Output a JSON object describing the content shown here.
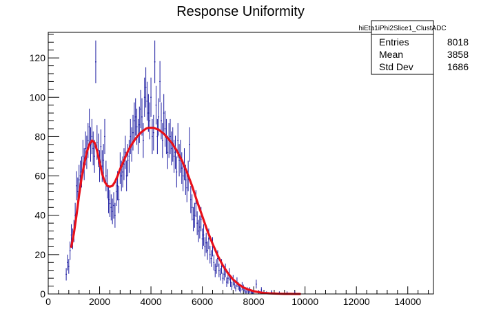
{
  "chart_data": {
    "type": "scatter",
    "title": "Response Uniformity",
    "xlabel": "",
    "ylabel": "",
    "xlim": [
      0,
      15000
    ],
    "ylim": [
      0,
      133
    ],
    "x_ticks": [
      0,
      2000,
      4000,
      6000,
      8000,
      10000,
      12000,
      14000
    ],
    "y_ticks": [
      0,
      20,
      40,
      60,
      80,
      100,
      120
    ],
    "grid": false,
    "colors": {
      "data": "#1a1aa0",
      "fit": "#e8101a",
      "axis": "#000000"
    },
    "stats_box": {
      "name": "hiEta1iPhi2Slice1_ClustADC",
      "rows": [
        {
          "label": "Entries",
          "value": "8018"
        },
        {
          "label": "Mean",
          "value": "3858"
        },
        {
          "label": "Std Dev",
          "value": "1686"
        }
      ]
    },
    "series": [
      {
        "type": "errorbar",
        "x_spacing": 37.5,
        "points": [
          [
            700,
            10
          ],
          [
            750,
            16
          ],
          [
            800,
            14
          ],
          [
            850,
            22
          ],
          [
            900,
            30
          ],
          [
            950,
            28
          ],
          [
            1000,
            32
          ],
          [
            1050,
            40
          ],
          [
            1100,
            55
          ],
          [
            1150,
            52
          ],
          [
            1200,
            58
          ],
          [
            1250,
            60
          ],
          [
            1300,
            62
          ],
          [
            1350,
            70
          ],
          [
            1400,
            66
          ],
          [
            1450,
            74
          ],
          [
            1500,
            72
          ],
          [
            1550,
            78
          ],
          [
            1600,
            85
          ],
          [
            1650,
            76
          ],
          [
            1700,
            80
          ],
          [
            1750,
            74
          ],
          [
            1800,
            70
          ],
          [
            1850,
            118
          ],
          [
            1900,
            77
          ],
          [
            1950,
            73
          ],
          [
            2000,
            65
          ],
          [
            2050,
            75
          ],
          [
            2100,
            65
          ],
          [
            2150,
            68
          ],
          [
            2200,
            80
          ],
          [
            2250,
            60
          ],
          [
            2300,
            56
          ],
          [
            2350,
            48
          ],
          [
            2400,
            46
          ],
          [
            2450,
            44
          ],
          [
            2500,
            42
          ],
          [
            2550,
            45
          ],
          [
            2600,
            40
          ],
          [
            2650,
            52
          ],
          [
            2700,
            55
          ],
          [
            2750,
            48
          ],
          [
            2800,
            64
          ],
          [
            2850,
            60
          ],
          [
            2900,
            62
          ],
          [
            2950,
            66
          ],
          [
            3000,
            72
          ],
          [
            3050,
            60
          ],
          [
            3100,
            68
          ],
          [
            3150,
            70
          ],
          [
            3200,
            80
          ],
          [
            3250,
            76
          ],
          [
            3300,
            82
          ],
          [
            3350,
            88
          ],
          [
            3400,
            90
          ],
          [
            3450,
            85
          ],
          [
            3500,
            80
          ],
          [
            3550,
            86
          ],
          [
            3600,
            94
          ],
          [
            3650,
            90
          ],
          [
            3700,
            78
          ],
          [
            3750,
            100
          ],
          [
            3800,
            105
          ],
          [
            3850,
            98
          ],
          [
            3900,
            92
          ],
          [
            3950,
            88
          ],
          [
            4000,
            100
          ],
          [
            4050,
            80
          ],
          [
            4100,
            82
          ],
          [
            4150,
            118
          ],
          [
            4200,
            96
          ],
          [
            4250,
            80
          ],
          [
            4300,
            90
          ],
          [
            4350,
            108
          ],
          [
            4400,
            88
          ],
          [
            4450,
            78
          ],
          [
            4500,
            92
          ],
          [
            4550,
            84
          ],
          [
            4600,
            80
          ],
          [
            4650,
            72
          ],
          [
            4700,
            78
          ],
          [
            4750,
            80
          ],
          [
            4800,
            74
          ],
          [
            4850,
            76
          ],
          [
            4900,
            70
          ],
          [
            4950,
            72
          ],
          [
            5000,
            62
          ],
          [
            5050,
            78
          ],
          [
            5100,
            68
          ],
          [
            5150,
            70
          ],
          [
            5200,
            64
          ],
          [
            5250,
            60
          ],
          [
            5300,
            66
          ],
          [
            5350,
            58
          ],
          [
            5400,
            54
          ],
          [
            5450,
            60
          ],
          [
            5500,
            76
          ],
          [
            5550,
            48
          ],
          [
            5600,
            44
          ],
          [
            5650,
            38
          ],
          [
            5700,
            40
          ],
          [
            5750,
            46
          ],
          [
            5800,
            36
          ],
          [
            5850,
            32
          ],
          [
            5900,
            34
          ],
          [
            5950,
            38
          ],
          [
            6000,
            28
          ],
          [
            6050,
            30
          ],
          [
            6100,
            24
          ],
          [
            6150,
            26
          ],
          [
            6200,
            22
          ],
          [
            6250,
            28
          ],
          [
            6300,
            20
          ],
          [
            6350,
            18
          ],
          [
            6400,
            24
          ],
          [
            6450,
            16
          ],
          [
            6500,
            12
          ],
          [
            6550,
            14
          ],
          [
            6600,
            18
          ],
          [
            6650,
            12
          ],
          [
            6700,
            10
          ],
          [
            6750,
            14
          ],
          [
            6800,
            8
          ],
          [
            6850,
            10
          ],
          [
            6900,
            12
          ],
          [
            6950,
            6
          ],
          [
            7000,
            8
          ],
          [
            7050,
            10
          ],
          [
            7100,
            6
          ],
          [
            7150,
            4
          ],
          [
            7200,
            7
          ],
          [
            7250,
            5
          ],
          [
            7300,
            3
          ],
          [
            7350,
            6
          ],
          [
            7400,
            4
          ],
          [
            7450,
            3
          ],
          [
            7500,
            2
          ],
          [
            7550,
            4
          ],
          [
            7600,
            3
          ],
          [
            7650,
            2
          ],
          [
            7700,
            1
          ],
          [
            7750,
            2
          ],
          [
            7800,
            1
          ],
          [
            7850,
            2
          ],
          [
            7900,
            1
          ],
          [
            7950,
            0.5
          ],
          [
            8000,
            1
          ],
          [
            8100,
            5
          ],
          [
            8200,
            1
          ],
          [
            8300,
            2
          ],
          [
            8400,
            0.5
          ],
          [
            8500,
            0.5
          ],
          [
            8700,
            1
          ],
          [
            9000,
            0.5
          ],
          [
            9300,
            0.5
          ],
          [
            9600,
            0.5
          ]
        ]
      },
      {
        "type": "fit-curve",
        "x": [
          900,
          1000,
          1100,
          1200,
          1300,
          1400,
          1500,
          1600,
          1700,
          1800,
          1900,
          2000,
          2100,
          2200,
          2300,
          2400,
          2500,
          2600,
          2700,
          2800,
          2900,
          3000,
          3100,
          3200,
          3300,
          3400,
          3500,
          3600,
          3700,
          3800,
          3900,
          4000,
          4100,
          4200,
          4300,
          4400,
          4500,
          4600,
          4700,
          4800,
          4900,
          5000,
          5200,
          5400,
          5600,
          5800,
          6000,
          6200,
          6400,
          6600,
          6800,
          7000,
          7200,
          7400,
          7600,
          7800,
          8000,
          8200,
          8400,
          8600,
          8800,
          9000,
          9200,
          9400,
          9600,
          9800
        ],
        "y": [
          24,
          31,
          40,
          50,
          59,
          66,
          72,
          76,
          78,
          77,
          73,
          67,
          61,
          57,
          55,
          54.5,
          55,
          57,
          60,
          63.5,
          66.5,
          69.5,
          72.5,
          75,
          77,
          79,
          80.5,
          82,
          83,
          84,
          84.5,
          84.5,
          84.5,
          84,
          83.5,
          82.5,
          81.5,
          80,
          78.5,
          77,
          75,
          73,
          68,
          62,
          55,
          47,
          39.5,
          32,
          25.5,
          19.5,
          14.5,
          10.5,
          7.3,
          5.0,
          3.3,
          2.2,
          1.4,
          0.9,
          0.5,
          0.3,
          0.2,
          0.1,
          0.05,
          0.03,
          0.01,
          0
        ]
      }
    ]
  }
}
